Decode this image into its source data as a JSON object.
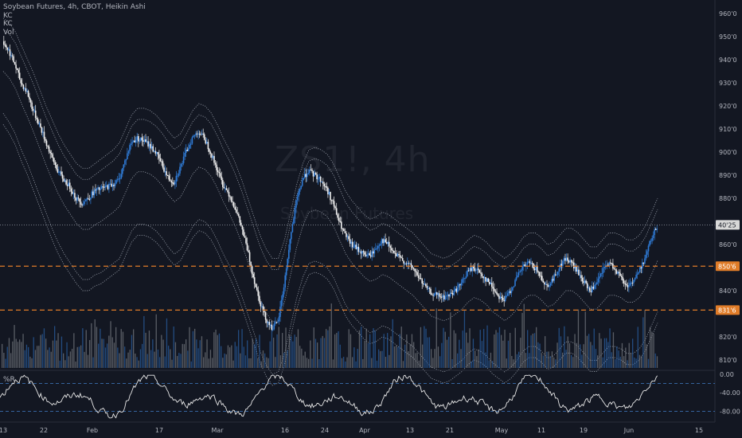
{
  "legend": {
    "title": "Soybean Futures, 4h, CBOT, Heikin Ashi",
    "line2": "KC",
    "line3": "KC",
    "line4": "Vol"
  },
  "watermark": {
    "symbol": "ZS1!, 4h",
    "name": "Soybean Futures"
  },
  "indicator_label": "%R",
  "colors": {
    "background": "#131722",
    "bull_candle": "#2f7bd6",
    "bear_candle": "#f0f0f0",
    "bands": "#9aa0ab",
    "hline": "#e07c28",
    "price_label_bg": "#e07c28",
    "last_price_bg": "#d8d8d8"
  },
  "chart_data": [
    {
      "type": "candlestick",
      "title": "Soybean Futures, 4h, CBOT, Heikin Ashi",
      "y_axis_ticks": [
        "960'0",
        "950'0",
        "940'0",
        "930'0",
        "920'0",
        "910'0",
        "900'0",
        "890'0",
        "880'0",
        "860'0",
        "840'0",
        "820'0",
        "810'0"
      ],
      "ylim": [
        805,
        962
      ],
      "x_axis_ticks": [
        "13",
        "22",
        "Feb",
        "17",
        "Mar",
        "16",
        "24",
        "Apr",
        "13",
        "21",
        "May",
        "11",
        "19",
        "Jun",
        "15"
      ],
      "price_labels": [
        {
          "text": "40'25",
          "value": 868.5,
          "style": "last"
        },
        {
          "text": "850'6",
          "value": 850.6,
          "style": "level"
        },
        {
          "text": "831'6",
          "value": 831.6,
          "style": "level"
        }
      ],
      "horizontal_lines": [
        850.6,
        831.6
      ],
      "series_close": [
        948,
        944,
        938,
        930,
        926,
        918,
        912,
        905,
        898,
        892,
        888,
        885,
        880,
        878,
        880,
        883,
        884,
        885,
        886,
        888,
        896,
        904,
        906,
        905,
        903,
        900,
        895,
        889,
        887,
        893,
        900,
        906,
        909,
        906,
        900,
        893,
        886,
        882,
        876,
        868,
        858,
        846,
        836,
        828,
        824,
        826,
        842,
        862,
        878,
        888,
        892,
        890,
        888,
        884,
        878,
        870,
        864,
        860,
        858,
        856,
        855,
        858,
        862,
        860,
        856,
        854,
        852,
        850,
        846,
        842,
        839,
        838,
        837,
        838,
        840,
        843,
        848,
        850,
        848,
        845,
        842,
        838,
        836,
        840,
        845,
        850,
        852,
        850,
        846,
        842,
        845,
        850,
        854,
        852,
        848,
        844,
        840,
        842,
        848,
        852,
        850,
        846,
        842,
        844,
        848,
        854,
        862,
        868
      ],
      "series_band_upper_outer": [
        958,
        956,
        952,
        946,
        940,
        934,
        927,
        920,
        914,
        908,
        903,
        899,
        895,
        893,
        893,
        895,
        897,
        899,
        901,
        904,
        910,
        916,
        919,
        919,
        918,
        916,
        913,
        909,
        906,
        908,
        913,
        918,
        921,
        920,
        917,
        912,
        906,
        901,
        895,
        888,
        880,
        872,
        864,
        858,
        854,
        854,
        862,
        874,
        886,
        895,
        901,
        902,
        901,
        899,
        895,
        889,
        883,
        879,
        876,
        873,
        871,
        872,
        874,
        873,
        871,
        869,
        867,
        865,
        862,
        859,
        856,
        855,
        854,
        855,
        857,
        859,
        862,
        864,
        863,
        861,
        858,
        856,
        854,
        856,
        859,
        863,
        865,
        865,
        863,
        860,
        861,
        864,
        867,
        867,
        865,
        862,
        859,
        859,
        862,
        865,
        865,
        864,
        862,
        862,
        864,
        868,
        874,
        880
      ],
      "series_band_lower_outer": [
        912,
        908,
        903,
        896,
        890,
        883,
        876,
        869,
        862,
        856,
        851,
        847,
        843,
        840,
        840,
        842,
        843,
        845,
        847,
        849,
        855,
        861,
        864,
        864,
        863,
        861,
        858,
        854,
        851,
        853,
        858,
        863,
        866,
        865,
        862,
        857,
        851,
        846,
        840,
        833,
        825,
        817,
        809,
        803,
        799,
        800,
        808,
        820,
        832,
        841,
        847,
        848,
        847,
        845,
        841,
        835,
        829,
        825,
        822,
        819,
        817,
        818,
        820,
        819,
        817,
        815,
        813,
        811,
        808,
        805,
        802,
        801,
        800,
        801,
        803,
        805,
        808,
        810,
        809,
        807,
        804,
        802,
        800,
        802,
        805,
        809,
        811,
        811,
        809,
        806,
        807,
        810,
        813,
        813,
        811,
        808,
        805,
        805,
        808,
        811,
        811,
        810,
        808,
        808,
        810,
        814,
        820,
        826
      ]
    },
    {
      "type": "bar",
      "title": "Vol",
      "note": "volume histogram overlaid at bottom of price pane"
    },
    {
      "type": "line",
      "title": "%R",
      "y_axis_ticks": [
        "0.00",
        "-40.00",
        "-80.00"
      ],
      "ylim": [
        -100,
        0
      ],
      "horizontal_lines": [
        -20,
        -80
      ]
    }
  ]
}
